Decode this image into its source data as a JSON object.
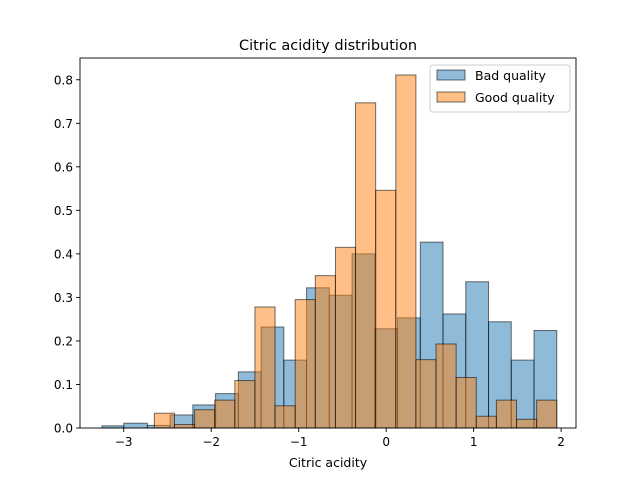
{
  "chart_data": {
    "type": "bar",
    "title": "Citric acidity distribution",
    "xlabel": "Citric acidity",
    "ylabel": "",
    "xlim": [
      -3.5,
      2.17
    ],
    "ylim": [
      0,
      0.85
    ],
    "xticks": [
      -3,
      -2,
      -1,
      0,
      1,
      2
    ],
    "yticks": [
      0.0,
      0.1,
      0.2,
      0.3,
      0.4,
      0.5,
      0.6,
      0.7,
      0.8
    ],
    "xtick_labels": [
      "−3",
      "−2",
      "−1",
      "0",
      "1",
      "2"
    ],
    "ytick_labels": [
      "0.0",
      "0.1",
      "0.2",
      "0.3",
      "0.4",
      "0.5",
      "0.6",
      "0.7",
      "0.8"
    ],
    "legend_position": "top-right",
    "grid": false,
    "series": [
      {
        "name": "Bad quality",
        "color": "#1f77b4",
        "bins": [
          [
            -3.25,
            -3.0,
            0.005
          ],
          [
            -3.0,
            -2.73,
            0.011
          ],
          [
            -2.73,
            -2.47,
            0.006
          ],
          [
            -2.47,
            -2.21,
            0.03
          ],
          [
            -2.21,
            -1.95,
            0.053
          ],
          [
            -1.95,
            -1.69,
            0.079
          ],
          [
            -1.69,
            -1.43,
            0.129
          ],
          [
            -1.43,
            -1.17,
            0.232
          ],
          [
            -1.17,
            -0.91,
            0.156
          ],
          [
            -0.91,
            -0.65,
            0.322
          ],
          [
            -0.65,
            -0.39,
            0.305
          ],
          [
            -0.39,
            -0.13,
            0.4
          ],
          [
            -0.13,
            0.13,
            0.228
          ],
          [
            0.13,
            0.39,
            0.253
          ],
          [
            0.39,
            0.65,
            0.427
          ],
          [
            0.65,
            0.91,
            0.262
          ],
          [
            0.91,
            1.17,
            0.336
          ],
          [
            1.17,
            1.43,
            0.244
          ],
          [
            1.43,
            1.69,
            0.156
          ],
          [
            1.69,
            1.95,
            0.224
          ]
        ]
      },
      {
        "name": "Good quality",
        "color": "#ff7f0e",
        "bins": [
          [
            -2.65,
            -2.42,
            0.034
          ],
          [
            -2.42,
            -2.19,
            0.008
          ],
          [
            -2.19,
            -1.96,
            0.042
          ],
          [
            -1.96,
            -1.73,
            0.064
          ],
          [
            -1.73,
            -1.5,
            0.109
          ],
          [
            -1.5,
            -1.27,
            0.278
          ],
          [
            -1.27,
            -1.04,
            0.051
          ],
          [
            -1.04,
            -0.81,
            0.295
          ],
          [
            -0.81,
            -0.58,
            0.35
          ],
          [
            -0.58,
            -0.35,
            0.415
          ],
          [
            -0.35,
            -0.12,
            0.747
          ],
          [
            -0.12,
            0.11,
            0.546
          ],
          [
            0.11,
            0.34,
            0.811
          ],
          [
            0.34,
            0.57,
            0.157
          ],
          [
            0.57,
            0.8,
            0.193
          ],
          [
            0.8,
            1.03,
            0.116
          ],
          [
            1.03,
            1.26,
            0.027
          ],
          [
            1.26,
            1.49,
            0.064
          ],
          [
            1.49,
            1.72,
            0.02
          ],
          [
            1.72,
            1.95,
            0.064
          ]
        ]
      }
    ]
  }
}
